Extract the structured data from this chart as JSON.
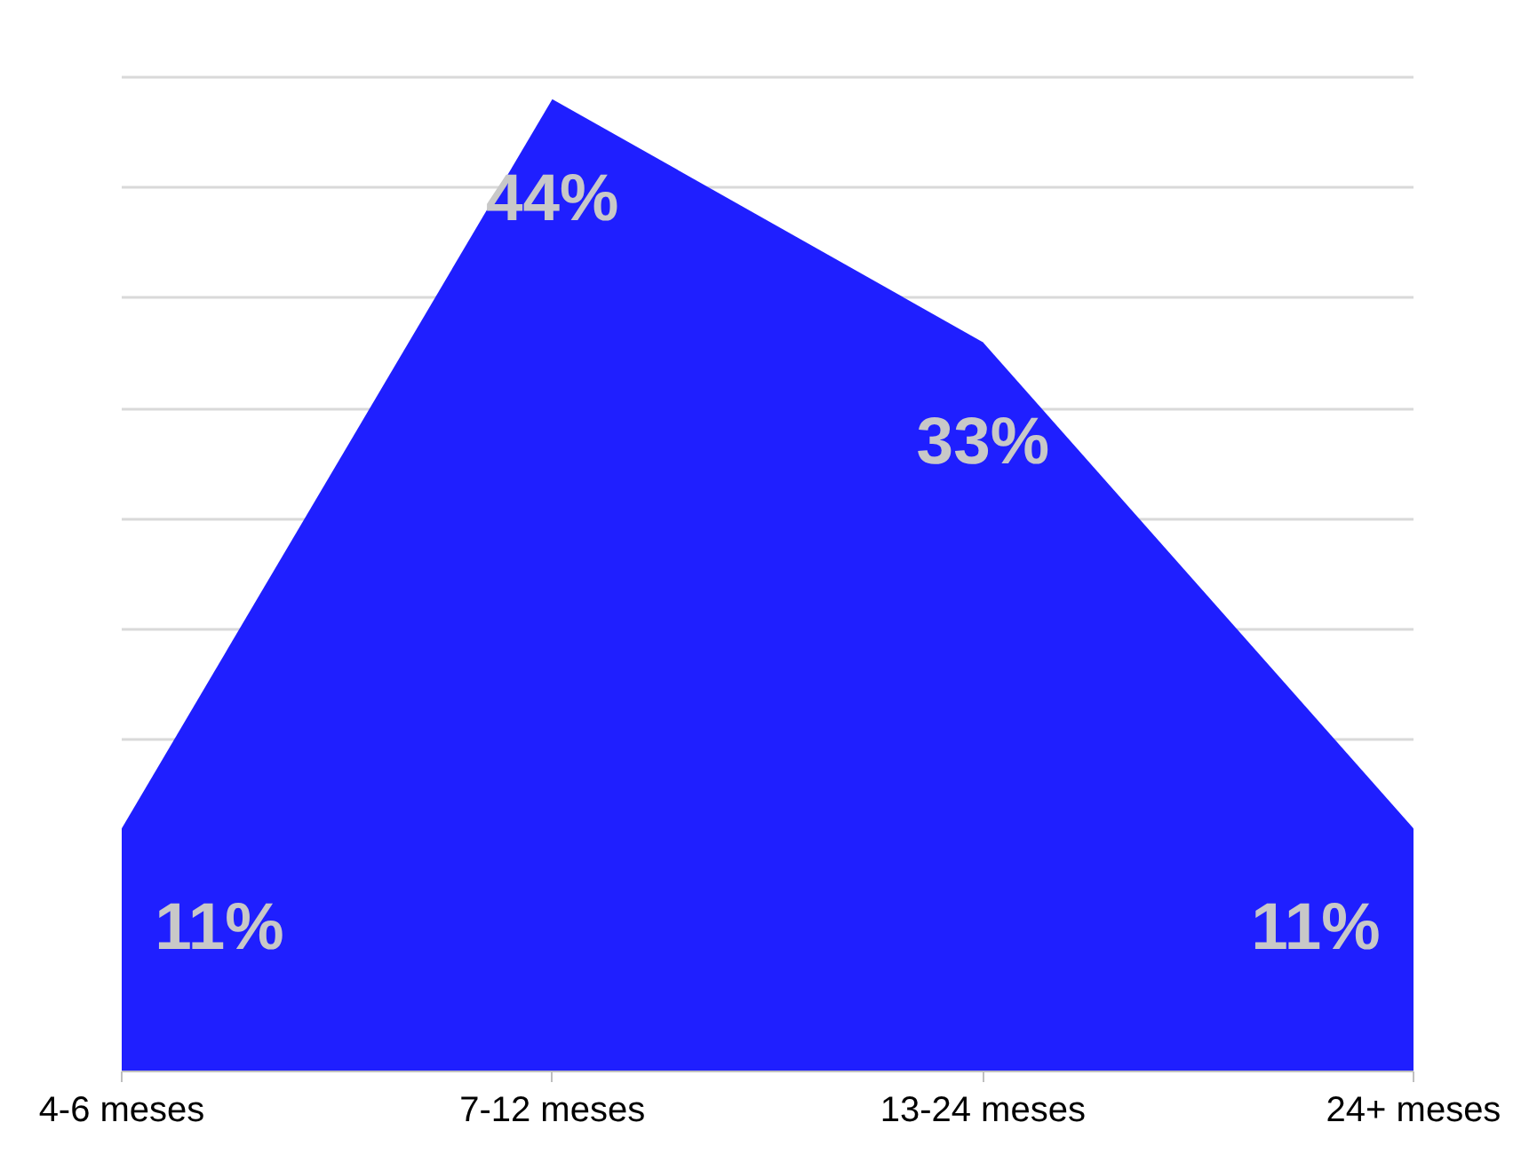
{
  "chart_data": {
    "type": "area",
    "categories": [
      "4-6 meses",
      "7-12 meses",
      "13-24 meses",
      "24+ meses"
    ],
    "values": [
      11,
      44,
      33,
      11
    ],
    "value_labels": [
      "11%",
      "44%",
      "33%",
      "11%"
    ],
    "color": "#1f1fff",
    "grid": "y",
    "tick_labels": "x"
  }
}
